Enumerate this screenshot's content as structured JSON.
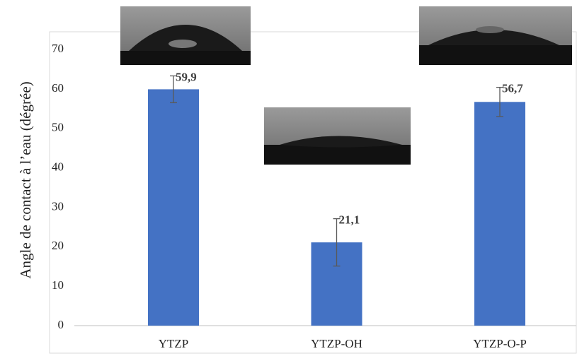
{
  "chart_data": {
    "type": "bar",
    "y_label": "Angle de contact à l’eau (dégrée)",
    "categories": [
      "YTZP",
      "YTZP-OH",
      "YTZP-O-P"
    ],
    "values": [
      59.9,
      21.1,
      56.7
    ],
    "value_labels": [
      "59,9",
      "21,1",
      "56,7"
    ],
    "errors": [
      3.4,
      6,
      3.7
    ],
    "color": "#4472c4",
    "ylim": [
      0,
      70
    ],
    "yticks": [
      0,
      10,
      20,
      30,
      40,
      50,
      60,
      70
    ]
  }
}
